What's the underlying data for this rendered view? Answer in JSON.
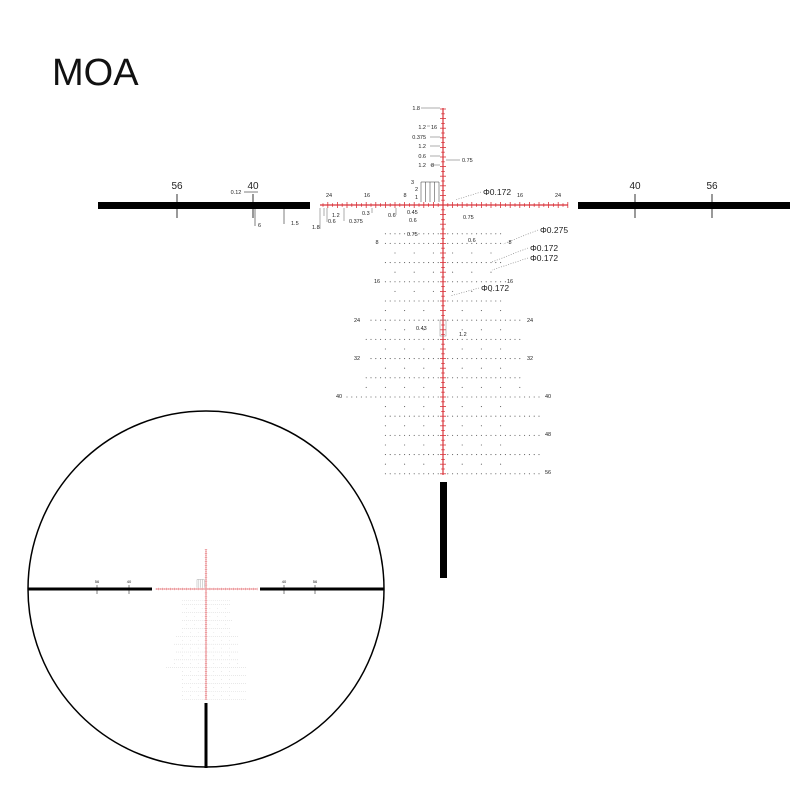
{
  "title": "MOA",
  "colors": {
    "reticle_red": "#d9333a",
    "bars": "#000000",
    "dots": "#555555"
  },
  "bar_labels": {
    "left_outer": "56",
    "left_inner": "40",
    "right_inner": "40",
    "right_outer": "56",
    "left_small": [
      "0.12",
      "6",
      "1.5"
    ]
  },
  "horizontal_tick_labels": {
    "left": [
      "24",
      "16",
      "8"
    ],
    "right": [
      "16",
      "24"
    ]
  },
  "horizontal_dimensions": [
    "1.8",
    "1.2",
    "0.6",
    "0.375",
    "0.3",
    "0.6"
  ],
  "vertical_dimensions": [
    "1.8",
    "1.2",
    "16",
    "0.375",
    "1.2",
    "0.6",
    "1.2",
    "8",
    "0.75",
    "3",
    "2",
    "1"
  ],
  "lower_dimensions": [
    "0.45",
    "0.6",
    "0.75",
    "0.75",
    "0.6",
    "0.43",
    "1.2"
  ],
  "callouts": [
    "Φ0.172",
    "Φ0.275",
    "Φ0.172",
    "Φ0.172",
    "Φ0.172"
  ],
  "row_labels": {
    "left": [
      "8",
      "16",
      "24",
      "32",
      "40"
    ],
    "right": [
      "8",
      "16",
      "24",
      "32",
      "40",
      "48",
      "56"
    ]
  }
}
